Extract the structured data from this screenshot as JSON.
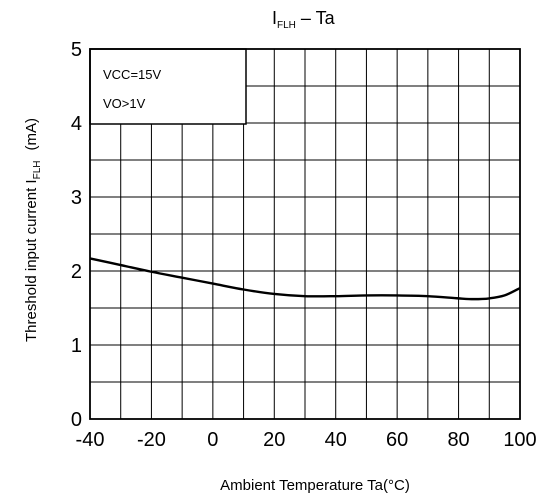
{
  "chart_data": {
    "type": "line",
    "title": {
      "main": "I",
      "sub": "FLH",
      "rest": " – Ta"
    },
    "xlabel": "Ambient Temperature Ta(°C)",
    "ylabel": {
      "main": "Threshold input current   I",
      "sub": "FLH",
      "unit": "(mA)"
    },
    "xlim": [
      -40,
      100
    ],
    "ylim": [
      0,
      5
    ],
    "x_ticks": [
      -40,
      -20,
      0,
      20,
      40,
      60,
      80,
      100
    ],
    "x_tick_labels": [
      "-40",
      "-20",
      "0",
      "20",
      "40",
      "60",
      "80",
      "100"
    ],
    "y_ticks": [
      0,
      1,
      2,
      3,
      4,
      5
    ],
    "y_tick_labels": [
      "0",
      "1",
      "2",
      "3",
      "4",
      "5"
    ],
    "grid": true,
    "conditions": [
      "VCC=15V",
      "VO>1V"
    ],
    "series": [
      {
        "x": [
          -40,
          -30,
          -20,
          -10,
          0,
          10,
          20,
          30,
          40,
          50,
          60,
          70,
          80,
          85,
          90,
          95,
          100
        ],
        "y": [
          2.17,
          2.08,
          1.99,
          1.91,
          1.83,
          1.75,
          1.69,
          1.66,
          1.66,
          1.67,
          1.67,
          1.66,
          1.63,
          1.62,
          1.63,
          1.67,
          1.77
        ]
      }
    ]
  }
}
